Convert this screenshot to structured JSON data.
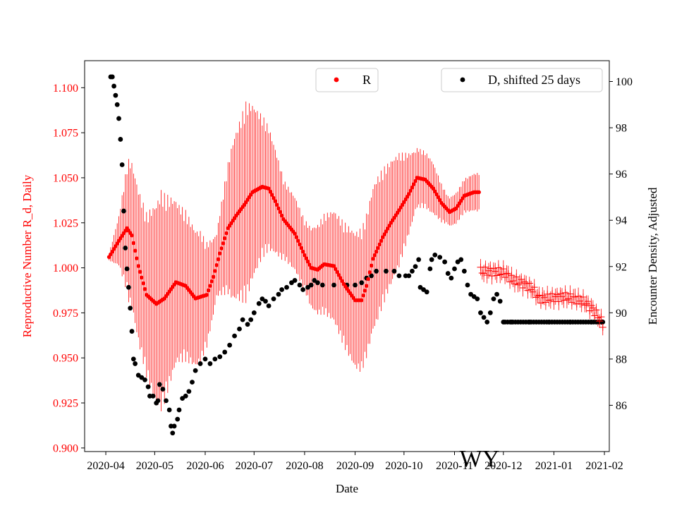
{
  "chart_data": {
    "type": "scatter",
    "title": "",
    "annotation": "WY",
    "xlabel": "Date",
    "ylabel_left": "Reproductive Number R_d, Daily",
    "ylabel_right": "Encounter Density, Adjusted",
    "x_ticks": [
      "2020-04",
      "2020-05",
      "2020-06",
      "2020-07",
      "2020-08",
      "2020-09",
      "2020-10",
      "2020-11",
      "2020-12",
      "2021-01",
      "2021-02"
    ],
    "x_range_days": [
      -13,
      309
    ],
    "ylim_left": [
      0.898,
      1.115
    ],
    "y_ticks_left": [
      "0.900",
      "0.925",
      "0.950",
      "0.975",
      "1.000",
      "1.025",
      "1.050",
      "1.075",
      "1.100"
    ],
    "ylim_right": [
      84.0,
      100.9
    ],
    "y_ticks_right": [
      "86",
      "88",
      "90",
      "92",
      "94",
      "96",
      "98",
      "100"
    ],
    "colors": {
      "R": "#ff0000",
      "D": "#000000",
      "axis": "#000000"
    },
    "legend": [
      {
        "label": "R",
        "color": "#ff0000",
        "placement": "top-center"
      },
      {
        "label": "D, shifted 25 days",
        "color": "#000000",
        "placement": "top-right"
      }
    ],
    "series": [
      {
        "name": "R",
        "axis": "left",
        "style": "dots-with-error-bars",
        "x_range_days": [
          2,
          229
        ],
        "r_points": [
          [
            2,
            1.006
          ],
          [
            8,
            1.015
          ],
          [
            13,
            1.022
          ],
          [
            16,
            1.018
          ],
          [
            20,
            1.001
          ],
          [
            25,
            0.985
          ],
          [
            31,
            0.98
          ],
          [
            36,
            0.983
          ],
          [
            43,
            0.992
          ],
          [
            49,
            0.99
          ],
          [
            55,
            0.983
          ],
          [
            62,
            0.985
          ],
          [
            66,
            0.995
          ],
          [
            70,
            1.008
          ],
          [
            75,
            1.022
          ],
          [
            80,
            1.029
          ],
          [
            85,
            1.035
          ],
          [
            90,
            1.042
          ],
          [
            96,
            1.045
          ],
          [
            100,
            1.044
          ],
          [
            104,
            1.037
          ],
          [
            109,
            1.027
          ],
          [
            116,
            1.019
          ],
          [
            122,
            1.007
          ],
          [
            126,
            1.0
          ],
          [
            130,
            0.999
          ],
          [
            134,
            1.002
          ],
          [
            140,
            1.001
          ],
          [
            146,
            0.991
          ],
          [
            153,
            0.982
          ],
          [
            157,
            0.982
          ],
          [
            160,
            0.99
          ],
          [
            164,
            1.005
          ],
          [
            170,
            1.017
          ],
          [
            175,
            1.025
          ],
          [
            180,
            1.032
          ],
          [
            186,
            1.041
          ],
          [
            191,
            1.05
          ],
          [
            196,
            1.049
          ],
          [
            201,
            1.044
          ],
          [
            206,
            1.036
          ],
          [
            211,
            1.031
          ],
          [
            215,
            1.033
          ],
          [
            220,
            1.04
          ],
          [
            226,
            1.042
          ],
          [
            229,
            1.042
          ]
        ],
        "error_halfwidth_points": [
          [
            2,
            0.002
          ],
          [
            8,
            0.014
          ],
          [
            14,
            0.04
          ],
          [
            25,
            0.046
          ],
          [
            34,
            0.062
          ],
          [
            44,
            0.045
          ],
          [
            58,
            0.037
          ],
          [
            68,
            0.018
          ],
          [
            78,
            0.045
          ],
          [
            86,
            0.056
          ],
          [
            96,
            0.04
          ],
          [
            110,
            0.022
          ],
          [
            122,
            0.02
          ],
          [
            134,
            0.028
          ],
          [
            148,
            0.036
          ],
          [
            156,
            0.04
          ],
          [
            166,
            0.041
          ],
          [
            180,
            0.032
          ],
          [
            190,
            0.017
          ],
          [
            200,
            0.015
          ],
          [
            210,
            0.008
          ],
          [
            229,
            0.011
          ]
        ]
      },
      {
        "name": "R (plus markers)",
        "axis": "left",
        "style": "plus-with-error-bars",
        "x_range_days": [
          230,
          305
        ],
        "r_points": [
          [
            230,
            0.998
          ],
          [
            238,
            0.998
          ],
          [
            245,
            0.997
          ],
          [
            250,
            0.993
          ],
          [
            257,
            0.991
          ],
          [
            262,
            0.988
          ],
          [
            266,
            0.983
          ],
          [
            272,
            0.983
          ],
          [
            280,
            0.984
          ],
          [
            287,
            0.983
          ],
          [
            294,
            0.981
          ],
          [
            299,
            0.977
          ],
          [
            305,
            0.969
          ]
        ],
        "error_halfwidth_points": [
          [
            230,
            0.004
          ],
          [
            305,
            0.004
          ]
        ]
      },
      {
        "name": "D, shifted 25 days",
        "axis": "right",
        "style": "dots",
        "d_points": [
          [
            3,
            100.2
          ],
          [
            4,
            100.2
          ],
          [
            5,
            99.8
          ],
          [
            6,
            99.4
          ],
          [
            7,
            99.0
          ],
          [
            8,
            98.4
          ],
          [
            9,
            97.5
          ],
          [
            10,
            96.4
          ],
          [
            11,
            94.4
          ],
          [
            12,
            92.8
          ],
          [
            13,
            91.9
          ],
          [
            14,
            91.1
          ],
          [
            15,
            90.2
          ],
          [
            16,
            89.2
          ],
          [
            17,
            88.0
          ],
          [
            18,
            87.8
          ],
          [
            20,
            87.3
          ],
          [
            22,
            87.2
          ],
          [
            24,
            87.1
          ],
          [
            26,
            86.8
          ],
          [
            27,
            86.4
          ],
          [
            29,
            86.4
          ],
          [
            31,
            86.1
          ],
          [
            32,
            86.2
          ],
          [
            33,
            86.9
          ],
          [
            35,
            86.7
          ],
          [
            37,
            86.2
          ],
          [
            39,
            85.8
          ],
          [
            40,
            85.1
          ],
          [
            41,
            84.8
          ],
          [
            42,
            85.1
          ],
          [
            44,
            85.4
          ],
          [
            45,
            85.8
          ],
          [
            47,
            86.3
          ],
          [
            49,
            86.4
          ],
          [
            51,
            86.6
          ],
          [
            53,
            87.0
          ],
          [
            55,
            87.5
          ],
          [
            58,
            87.8
          ],
          [
            61,
            88.0
          ],
          [
            64,
            87.8
          ],
          [
            67,
            88.0
          ],
          [
            70,
            88.1
          ],
          [
            73,
            88.3
          ],
          [
            76,
            88.6
          ],
          [
            79,
            89.0
          ],
          [
            82,
            89.3
          ],
          [
            84,
            89.7
          ],
          [
            87,
            89.5
          ],
          [
            89,
            89.7
          ],
          [
            91,
            90.0
          ],
          [
            94,
            90.4
          ],
          [
            96,
            90.6
          ],
          [
            98,
            90.5
          ],
          [
            100,
            90.3
          ],
          [
            103,
            90.6
          ],
          [
            106,
            90.8
          ],
          [
            108,
            91.0
          ],
          [
            111,
            91.1
          ],
          [
            114,
            91.3
          ],
          [
            116,
            91.4
          ],
          [
            119,
            91.2
          ],
          [
            121,
            91.0
          ],
          [
            124,
            91.1
          ],
          [
            126,
            91.2
          ],
          [
            128,
            91.4
          ],
          [
            130,
            91.3
          ],
          [
            133,
            91.2
          ],
          [
            140,
            91.2
          ],
          [
            148,
            91.2
          ],
          [
            153,
            91.2
          ],
          [
            157,
            91.3
          ],
          [
            160,
            91.5
          ],
          [
            163,
            91.6
          ],
          [
            166,
            91.8
          ],
          [
            172,
            91.8
          ],
          [
            177,
            91.8
          ],
          [
            180,
            91.6
          ],
          [
            184,
            91.6
          ],
          [
            186,
            91.6
          ],
          [
            188,
            91.8
          ],
          [
            190,
            92.0
          ],
          [
            192,
            92.3
          ],
          [
            193,
            91.1
          ],
          [
            195,
            91.0
          ],
          [
            197,
            90.9
          ],
          [
            199,
            91.9
          ],
          [
            200,
            92.3
          ],
          [
            202,
            92.5
          ],
          [
            205,
            92.4
          ],
          [
            208,
            92.2
          ],
          [
            210,
            91.7
          ],
          [
            212,
            91.5
          ],
          [
            214,
            91.9
          ],
          [
            216,
            92.2
          ],
          [
            218,
            92.3
          ],
          [
            220,
            91.8
          ],
          [
            222,
            91.2
          ],
          [
            224,
            90.8
          ],
          [
            226,
            90.7
          ],
          [
            228,
            90.6
          ],
          [
            230,
            90.0
          ],
          [
            232,
            89.8
          ],
          [
            234,
            89.6
          ],
          [
            236,
            90.0
          ],
          [
            238,
            90.6
          ],
          [
            240,
            90.8
          ],
          [
            242,
            90.5
          ],
          [
            244,
            89.6
          ],
          [
            249,
            89.6
          ],
          [
            260,
            89.6
          ],
          [
            272,
            89.6
          ],
          [
            285,
            89.6
          ],
          [
            298,
            89.6
          ],
          [
            305,
            89.6
          ]
        ]
      }
    ]
  }
}
